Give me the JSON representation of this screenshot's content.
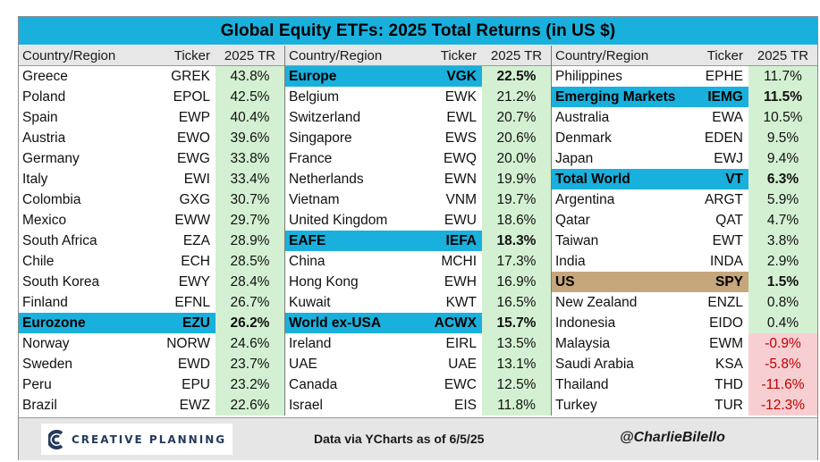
{
  "title": "Global Equity ETFs: 2025 Total Returns (in US $)",
  "headers": {
    "name": "Country/Region",
    "ticker": "Ticker",
    "ret": "2025 TR"
  },
  "columns": [
    [
      {
        "name": "Greece",
        "ticker": "GREK",
        "ret": "43.8%"
      },
      {
        "name": "Poland",
        "ticker": "EPOL",
        "ret": "42.5%"
      },
      {
        "name": "Spain",
        "ticker": "EWP",
        "ret": "40.4%"
      },
      {
        "name": "Austria",
        "ticker": "EWO",
        "ret": "39.6%"
      },
      {
        "name": "Germany",
        "ticker": "EWG",
        "ret": "33.8%"
      },
      {
        "name": "Italy",
        "ticker": "EWI",
        "ret": "33.4%"
      },
      {
        "name": "Colombia",
        "ticker": "GXG",
        "ret": "30.7%"
      },
      {
        "name": "Mexico",
        "ticker": "EWW",
        "ret": "29.7%"
      },
      {
        "name": "South Africa",
        "ticker": "EZA",
        "ret": "28.9%"
      },
      {
        "name": "Chile",
        "ticker": "ECH",
        "ret": "28.5%"
      },
      {
        "name": "South Korea",
        "ticker": "EWY",
        "ret": "28.4%"
      },
      {
        "name": "Finland",
        "ticker": "EFNL",
        "ret": "26.7%"
      },
      {
        "name": "Eurozone",
        "ticker": "EZU",
        "ret": "26.2%",
        "highlight": "blue"
      },
      {
        "name": "Norway",
        "ticker": "NORW",
        "ret": "24.6%"
      },
      {
        "name": "Sweden",
        "ticker": "EWD",
        "ret": "23.7%"
      },
      {
        "name": "Peru",
        "ticker": "EPU",
        "ret": "23.2%"
      },
      {
        "name": "Brazil",
        "ticker": "EWZ",
        "ret": "22.6%"
      }
    ],
    [
      {
        "name": "Europe",
        "ticker": "VGK",
        "ret": "22.5%",
        "highlight": "blue"
      },
      {
        "name": "Belgium",
        "ticker": "EWK",
        "ret": "21.2%"
      },
      {
        "name": "Switzerland",
        "ticker": "EWL",
        "ret": "20.7%"
      },
      {
        "name": "Singapore",
        "ticker": "EWS",
        "ret": "20.6%"
      },
      {
        "name": "France",
        "ticker": "EWQ",
        "ret": "20.0%"
      },
      {
        "name": "Netherlands",
        "ticker": "EWN",
        "ret": "19.9%"
      },
      {
        "name": "Vietnam",
        "ticker": "VNM",
        "ret": "19.7%"
      },
      {
        "name": "United Kingdom",
        "ticker": "EWU",
        "ret": "18.6%"
      },
      {
        "name": "EAFE",
        "ticker": "IEFA",
        "ret": "18.3%",
        "highlight": "blue"
      },
      {
        "name": "China",
        "ticker": "MCHI",
        "ret": "17.3%"
      },
      {
        "name": "Hong Kong",
        "ticker": "EWH",
        "ret": "16.9%"
      },
      {
        "name": "Kuwait",
        "ticker": "KWT",
        "ret": "16.5%"
      },
      {
        "name": "World ex-USA",
        "ticker": "ACWX",
        "ret": "15.7%",
        "highlight": "blue"
      },
      {
        "name": "Ireland",
        "ticker": "EIRL",
        "ret": "13.5%"
      },
      {
        "name": "UAE",
        "ticker": "UAE",
        "ret": "13.1%"
      },
      {
        "name": "Canada",
        "ticker": "EWC",
        "ret": "12.5%"
      },
      {
        "name": "Israel",
        "ticker": "EIS",
        "ret": "11.8%"
      }
    ],
    [
      {
        "name": "Philippines",
        "ticker": "EPHE",
        "ret": "11.7%"
      },
      {
        "name": "Emerging Markets",
        "ticker": "IEMG",
        "ret": "11.5%",
        "highlight": "blue"
      },
      {
        "name": "Australia",
        "ticker": "EWA",
        "ret": "10.5%"
      },
      {
        "name": "Denmark",
        "ticker": "EDEN",
        "ret": "9.5%"
      },
      {
        "name": "Japan",
        "ticker": "EWJ",
        "ret": "9.4%"
      },
      {
        "name": "Total World",
        "ticker": "VT",
        "ret": "6.3%",
        "highlight": "blue"
      },
      {
        "name": "Argentina",
        "ticker": "ARGT",
        "ret": "5.9%"
      },
      {
        "name": "Qatar",
        "ticker": "QAT",
        "ret": "4.7%"
      },
      {
        "name": "Taiwan",
        "ticker": "EWT",
        "ret": "3.8%"
      },
      {
        "name": "India",
        "ticker": "INDA",
        "ret": "2.9%"
      },
      {
        "name": "US",
        "ticker": "SPY",
        "ret": "1.5%",
        "highlight": "tan"
      },
      {
        "name": "New Zealand",
        "ticker": "ENZL",
        "ret": "0.8%"
      },
      {
        "name": "Indonesia",
        "ticker": "EIDO",
        "ret": "0.4%"
      },
      {
        "name": "Malaysia",
        "ticker": "EWM",
        "ret": "-0.9%"
      },
      {
        "name": "Saudi Arabia",
        "ticker": "KSA",
        "ret": "-5.8%"
      },
      {
        "name": "Thailand",
        "ticker": "THD",
        "ret": "-11.6%"
      },
      {
        "name": "Turkey",
        "ticker": "TUR",
        "ret": "-12.3%"
      }
    ]
  ],
  "footer": {
    "logo_text": "CREATIVE PLANNING",
    "source": "Data via YCharts as of 6/5/25",
    "handle": "@CharlieBilello"
  },
  "colors": {
    "title_bg": "#1ab0dd",
    "highlight_blue": "#1ab0dd",
    "highlight_tan": "#c6a67b",
    "positive_bg": "#d4f0d2",
    "negative_bg": "#f7cfd2",
    "negative_text": "#c00000"
  },
  "icons": {
    "logo": "creative-planning-logo-icon"
  }
}
